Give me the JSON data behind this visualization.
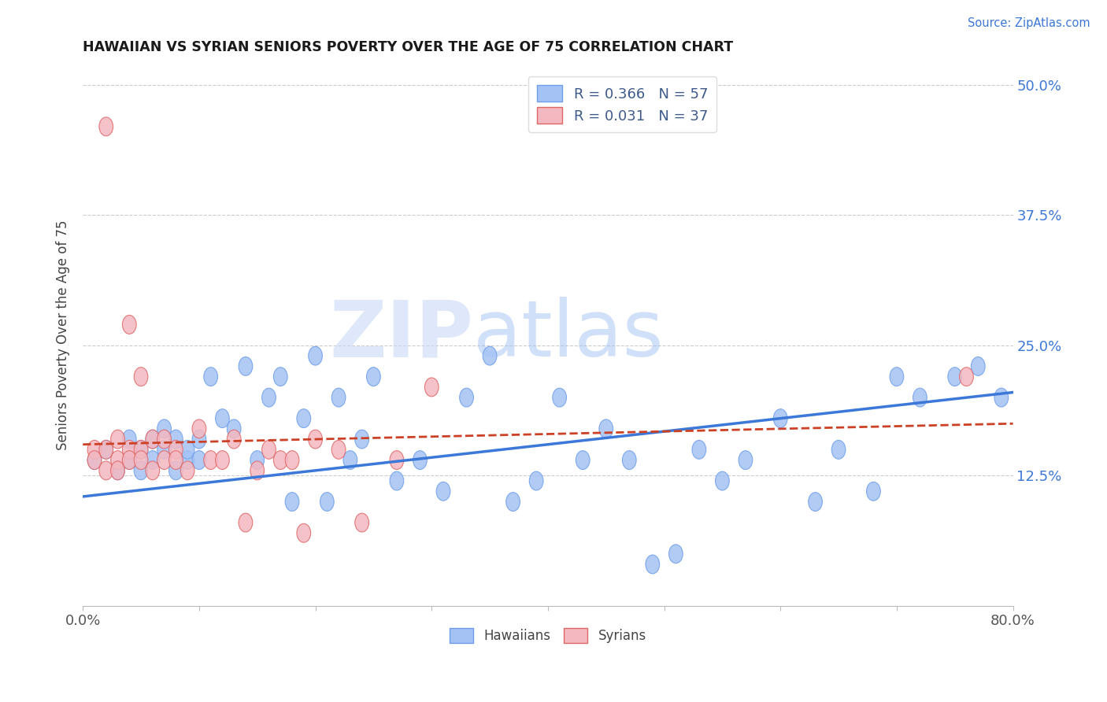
{
  "title": "HAWAIIAN VS SYRIAN SENIORS POVERTY OVER THE AGE OF 75 CORRELATION CHART",
  "source_text": "Source: ZipAtlas.com",
  "ylabel": "Seniors Poverty Over the Age of 75",
  "xlim": [
    0.0,
    0.8
  ],
  "ylim": [
    0.0,
    0.52
  ],
  "xticks": [
    0.0,
    0.1,
    0.2,
    0.3,
    0.4,
    0.5,
    0.6,
    0.7,
    0.8
  ],
  "xticklabels": [
    "0.0%",
    "",
    "",
    "",
    "",
    "",
    "",
    "",
    "80.0%"
  ],
  "ytick_positions": [
    0.0,
    0.125,
    0.25,
    0.375,
    0.5
  ],
  "yticklabels_right": [
    "",
    "12.5%",
    "25.0%",
    "37.5%",
    "50.0%"
  ],
  "hawaiian_color": "#a4c2f4",
  "hawaiian_edge_color": "#6d9eeb",
  "syrian_color": "#f4b8c1",
  "syrian_edge_color": "#e06666",
  "hawaiian_line_color": "#3c78d8",
  "syrian_line_color": "#cc4125",
  "legend_r_hawaiian": "R = 0.366",
  "legend_n_hawaiian": "N = 57",
  "legend_r_syrian": "R = 0.031",
  "legend_n_syrian": "N = 37",
  "legend_text_color": "#3d5a8a",
  "watermark_zip": "ZIP",
  "watermark_atlas": "atlas",
  "hawaiian_x": [
    0.01,
    0.02,
    0.03,
    0.04,
    0.04,
    0.05,
    0.05,
    0.06,
    0.06,
    0.07,
    0.07,
    0.08,
    0.08,
    0.09,
    0.09,
    0.1,
    0.1,
    0.11,
    0.12,
    0.13,
    0.14,
    0.15,
    0.16,
    0.17,
    0.18,
    0.19,
    0.2,
    0.21,
    0.22,
    0.23,
    0.24,
    0.25,
    0.27,
    0.29,
    0.31,
    0.33,
    0.35,
    0.37,
    0.39,
    0.41,
    0.43,
    0.45,
    0.47,
    0.49,
    0.51,
    0.53,
    0.55,
    0.57,
    0.6,
    0.63,
    0.65,
    0.68,
    0.7,
    0.72,
    0.75,
    0.77,
    0.79
  ],
  "hawaiian_y": [
    0.14,
    0.15,
    0.13,
    0.14,
    0.16,
    0.15,
    0.13,
    0.16,
    0.14,
    0.15,
    0.17,
    0.13,
    0.16,
    0.14,
    0.15,
    0.14,
    0.16,
    0.22,
    0.18,
    0.17,
    0.23,
    0.14,
    0.2,
    0.22,
    0.1,
    0.18,
    0.24,
    0.1,
    0.2,
    0.14,
    0.16,
    0.22,
    0.12,
    0.14,
    0.11,
    0.2,
    0.24,
    0.1,
    0.12,
    0.2,
    0.14,
    0.17,
    0.14,
    0.04,
    0.05,
    0.15,
    0.12,
    0.14,
    0.18,
    0.1,
    0.15,
    0.11,
    0.22,
    0.2,
    0.22,
    0.23,
    0.2
  ],
  "syrian_x": [
    0.01,
    0.01,
    0.02,
    0.02,
    0.02,
    0.03,
    0.03,
    0.03,
    0.04,
    0.04,
    0.04,
    0.05,
    0.05,
    0.05,
    0.06,
    0.06,
    0.07,
    0.07,
    0.08,
    0.08,
    0.09,
    0.1,
    0.11,
    0.12,
    0.13,
    0.14,
    0.15,
    0.16,
    0.17,
    0.18,
    0.19,
    0.2,
    0.22,
    0.24,
    0.27,
    0.3,
    0.76
  ],
  "syrian_y": [
    0.15,
    0.14,
    0.46,
    0.13,
    0.15,
    0.14,
    0.16,
    0.13,
    0.27,
    0.15,
    0.14,
    0.22,
    0.15,
    0.14,
    0.16,
    0.13,
    0.14,
    0.16,
    0.15,
    0.14,
    0.13,
    0.17,
    0.14,
    0.14,
    0.16,
    0.08,
    0.13,
    0.15,
    0.14,
    0.14,
    0.07,
    0.16,
    0.15,
    0.08,
    0.14,
    0.21,
    0.22
  ],
  "hawaiian_line_x": [
    0.0,
    0.8
  ],
  "hawaiian_line_y": [
    0.105,
    0.205
  ],
  "syrian_line_x": [
    0.0,
    0.8
  ],
  "syrian_line_y": [
    0.155,
    0.175
  ]
}
